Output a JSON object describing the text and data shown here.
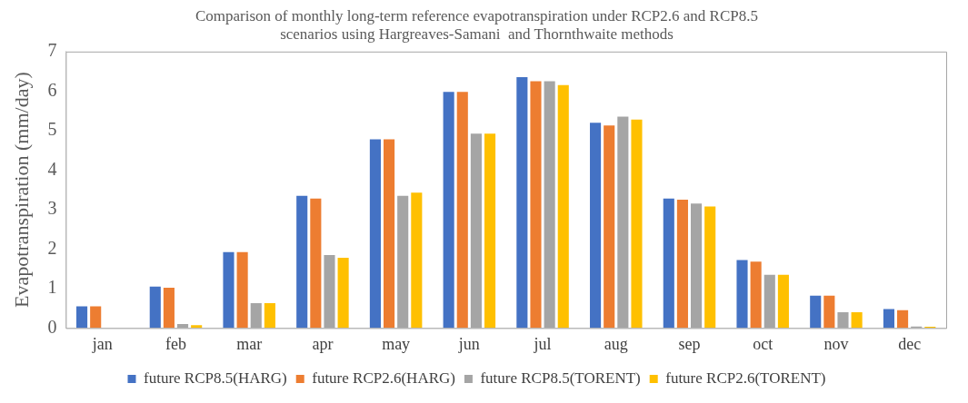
{
  "chart_data": {
    "type": "bar",
    "title": "Comparison of monthly long-term reference evapotranspiration under RCP2.6 and RCP8.5\nscenarios using Hargreaves-Samani  and Thornthwaite methods",
    "ylabel": "Evapotranspiration (mm/day)",
    "categories": [
      "jan",
      "feb",
      "mar",
      "apr",
      "may",
      "jun",
      "jul",
      "aug",
      "sep",
      "oct",
      "nov",
      "dec"
    ],
    "series": [
      {
        "name": "future RCP8.5(HARG)",
        "color": "#4472c4",
        "values": [
          0.55,
          1.05,
          1.92,
          3.35,
          4.78,
          5.98,
          6.35,
          5.2,
          3.28,
          1.72,
          0.82,
          0.48
        ]
      },
      {
        "name": "future RCP2.6(HARG)",
        "color": "#ed7d31",
        "values": [
          0.55,
          1.02,
          1.92,
          3.28,
          4.78,
          5.98,
          6.25,
          5.13,
          3.25,
          1.68,
          0.82,
          0.45
        ]
      },
      {
        "name": "future RCP8.5(TORENT)",
        "color": "#a5a5a5",
        "values": [
          0,
          0.1,
          0.63,
          1.85,
          3.35,
          4.92,
          6.25,
          5.35,
          3.15,
          1.35,
          0.4,
          0.04
        ]
      },
      {
        "name": "future RCP2.6(TORENT)",
        "color": "#ffc000",
        "values": [
          0,
          0.07,
          0.63,
          1.78,
          3.43,
          4.92,
          6.15,
          5.28,
          3.08,
          1.35,
          0.4,
          0.03
        ]
      }
    ],
    "ylim": [
      0,
      7
    ],
    "yticks": [
      0,
      1,
      2,
      3,
      4,
      5,
      6,
      7
    ],
    "grid": false,
    "legend": "bottom"
  }
}
